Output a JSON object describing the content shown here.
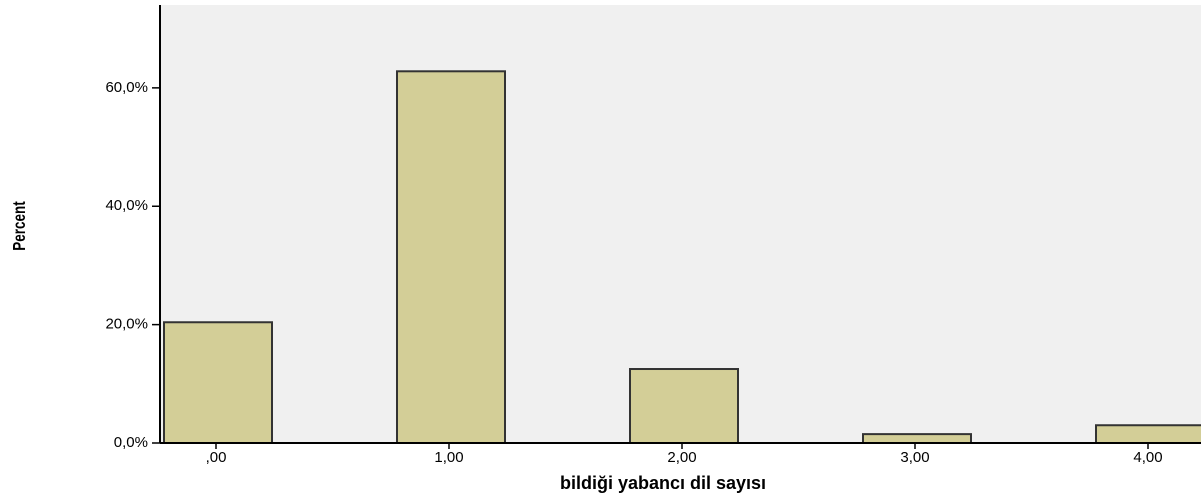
{
  "chart_data": {
    "type": "bar",
    "x_label": "bildiği yabancı dil sayısı",
    "y_label": "Percent",
    "categories": [
      ",00",
      "1,00",
      "2,00",
      "3,00",
      "4,00"
    ],
    "values": [
      20.4,
      62.8,
      12.5,
      1.5,
      3.0
    ],
    "color": "#d3ce97",
    "ylim": [
      0,
      74
    ],
    "yticks": [
      {
        "value": 0,
        "label": "0,0%"
      },
      {
        "value": 20,
        "label": "20,0%"
      },
      {
        "value": 40,
        "label": "40,0%"
      },
      {
        "value": 60,
        "label": "60,0%"
      }
    ],
    "grid": false
  }
}
